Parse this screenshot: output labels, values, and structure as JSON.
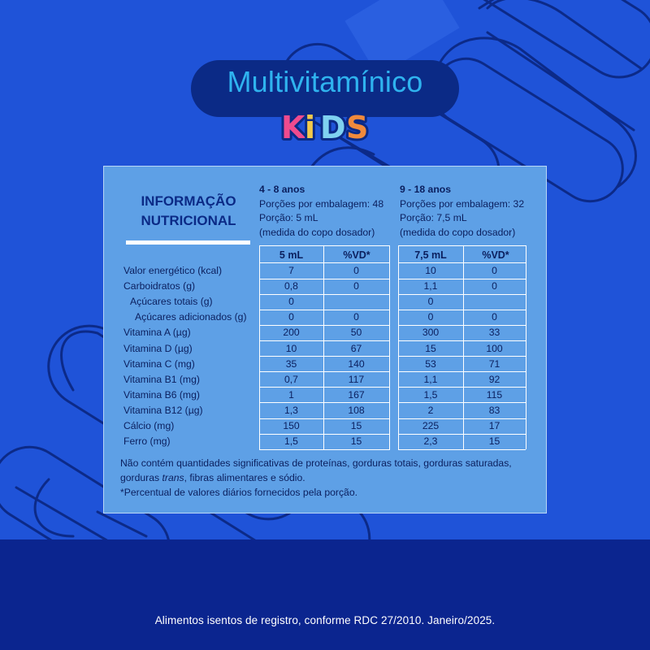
{
  "header": {
    "title": "Multivitamínico",
    "kids_logo": "KIDS"
  },
  "table": {
    "title_line1": "INFORMAÇÃO",
    "title_line2": "NUTRICIONAL",
    "group1": {
      "age": "4 - 8 anos",
      "servings": "Porções por embalagem: 48",
      "portion": "Porção: 5 mL",
      "measure": "(medida do copo dosador)",
      "col_qty": "5 mL",
      "col_vd": "%VD*"
    },
    "group2": {
      "age": "9 - 18 anos",
      "servings": "Porções por embalagem: 32",
      "portion": "Porção: 7,5 mL",
      "measure": "(medida do copo dosador)",
      "col_qty": "7,5 mL",
      "col_vd": "%VD*"
    },
    "rows": [
      {
        "label": "Valor energético (kcal)",
        "q1": "7",
        "v1": "0",
        "q2": "10",
        "v2": "0"
      },
      {
        "label": "Carboidratos (g)",
        "q1": "0,8",
        "v1": "0",
        "q2": "1,1",
        "v2": "0"
      },
      {
        "label": "Açúcares totais (g)",
        "q1": "0",
        "v1": "",
        "q2": "0",
        "v2": ""
      },
      {
        "label": "Açúcares adicionados (g)",
        "q1": "0",
        "v1": "0",
        "q2": "0",
        "v2": "0"
      },
      {
        "label": "Vitamina A (µg)",
        "q1": "200",
        "v1": "50",
        "q2": "300",
        "v2": "33"
      },
      {
        "label": "Vitamina D (µg)",
        "q1": "10",
        "v1": "67",
        "q2": "15",
        "v2": "100"
      },
      {
        "label": "Vitamina C (mg)",
        "q1": "35",
        "v1": "140",
        "q2": "53",
        "v2": "71"
      },
      {
        "label": "Vitamina B1 (mg)",
        "q1": "0,7",
        "v1": "117",
        "q2": "1,1",
        "v2": "92"
      },
      {
        "label": "Vitamina B6 (mg)",
        "q1": "1",
        "v1": "167",
        "q2": "1,5",
        "v2": "115"
      },
      {
        "label": "Vitamina B12 (µg)",
        "q1": "1,3",
        "v1": "108",
        "q2": "2",
        "v2": "83"
      },
      {
        "label": "Cálcio (mg)",
        "q1": "150",
        "v1": "15",
        "q2": "225",
        "v2": "17"
      },
      {
        "label": "Ferro (mg)",
        "q1": "1,5",
        "v1": "15",
        "q2": "2,3",
        "v2": "15"
      }
    ],
    "note_line1": "Não contém quantidades significativas de proteínas, gorduras totais, gorduras saturadas,",
    "note_line2_a": "gorduras ",
    "note_line2_italic": "trans",
    "note_line2_b": ", fibras alimentares e sódio.",
    "note_line3": "*Percentual de valores diários fornecidos pela porção."
  },
  "footer": {
    "text": "Alimentos isentos de registro, conforme RDC 27/2010. Janeiro/2025."
  },
  "colors": {
    "background": "#1f53d8",
    "bottom_band": "#0b258f",
    "panel": "#5ea0e6",
    "title_pill": "#0b2a86",
    "title_text": "#2fb3ef",
    "table_text": "#0b1f5e"
  }
}
